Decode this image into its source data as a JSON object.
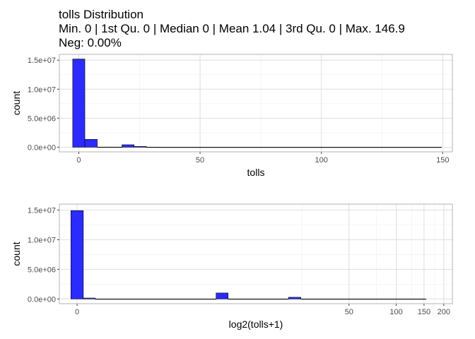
{
  "title": {
    "line1": "tolls Distribution",
    "line2": "Min. 0 | 1st Qu. 0 | Median 0 | Mean 1.04 | 3rd Qu. 0 | Max. 146.9",
    "line3": "Neg: 0.00%"
  },
  "colors": {
    "bar_fill": "#2b2bff",
    "bar_stroke": "#000000",
    "grid_major": "#dedede",
    "grid_minor": "#efefef",
    "panel_border": "#b3b3b3"
  },
  "chart_data": [
    {
      "type": "bar",
      "xlabel": "tolls",
      "ylabel": "count",
      "xlim": [
        -8,
        154
      ],
      "ylim": [
        -800000,
        16000000
      ],
      "x_ticks": [
        0,
        50,
        100,
        150
      ],
      "x_tick_labels": [
        "0",
        "50",
        "100",
        "150"
      ],
      "y_ticks": [
        0,
        5000000,
        10000000,
        15000000
      ],
      "y_tick_labels": [
        "0.0e+00",
        "5.0e+06",
        "1.0e+07",
        "1.5e+07"
      ],
      "bins": [
        {
          "x0": -2.5,
          "x1": 2.5,
          "count": 15200000
        },
        {
          "x0": 2.5,
          "x1": 7.6,
          "count": 1350000
        },
        {
          "x0": 7.6,
          "x1": 12.7,
          "count": 20000
        },
        {
          "x0": 12.7,
          "x1": 17.8,
          "count": 20000
        },
        {
          "x0": 17.8,
          "x1": 22.8,
          "count": 420000
        },
        {
          "x0": 22.8,
          "x1": 27.9,
          "count": 130000
        },
        {
          "x0": 27.9,
          "x1": 33.0,
          "count": 15000
        },
        {
          "x0": 33.0,
          "x1": 149.5,
          "count": 0
        }
      ]
    },
    {
      "type": "bar",
      "xlabel": "log2(tolls+1)",
      "ylabel": "count",
      "scale": "log2(x+1)",
      "xlim": [
        -0.37,
        7.83
      ],
      "ylim": [
        -800000,
        16000000
      ],
      "x_ticks": [
        0,
        50,
        100,
        150,
        200
      ],
      "x_tick_labels": [
        "0",
        "50",
        "100",
        "150",
        "200"
      ],
      "y_ticks": [
        0,
        5000000,
        10000000,
        15000000
      ],
      "y_tick_labels": [
        "0.0e+00",
        "5.0e+06",
        "1.0e+07",
        "1.5e+07"
      ],
      "bins": [
        {
          "x0": -0.13,
          "x1": 0.13,
          "count": 14900000
        },
        {
          "x0": 0.13,
          "x1": 0.38,
          "count": 150000
        },
        {
          "x0": 0.38,
          "x1": 2.9,
          "count": 0
        },
        {
          "x0": 2.9,
          "x1": 3.15,
          "count": 1000000
        },
        {
          "x0": 3.15,
          "x1": 4.41,
          "count": 0
        },
        {
          "x0": 4.41,
          "x1": 4.67,
          "count": 280000
        },
        {
          "x0": 4.67,
          "x1": 7.28,
          "count": 0
        }
      ]
    }
  ]
}
